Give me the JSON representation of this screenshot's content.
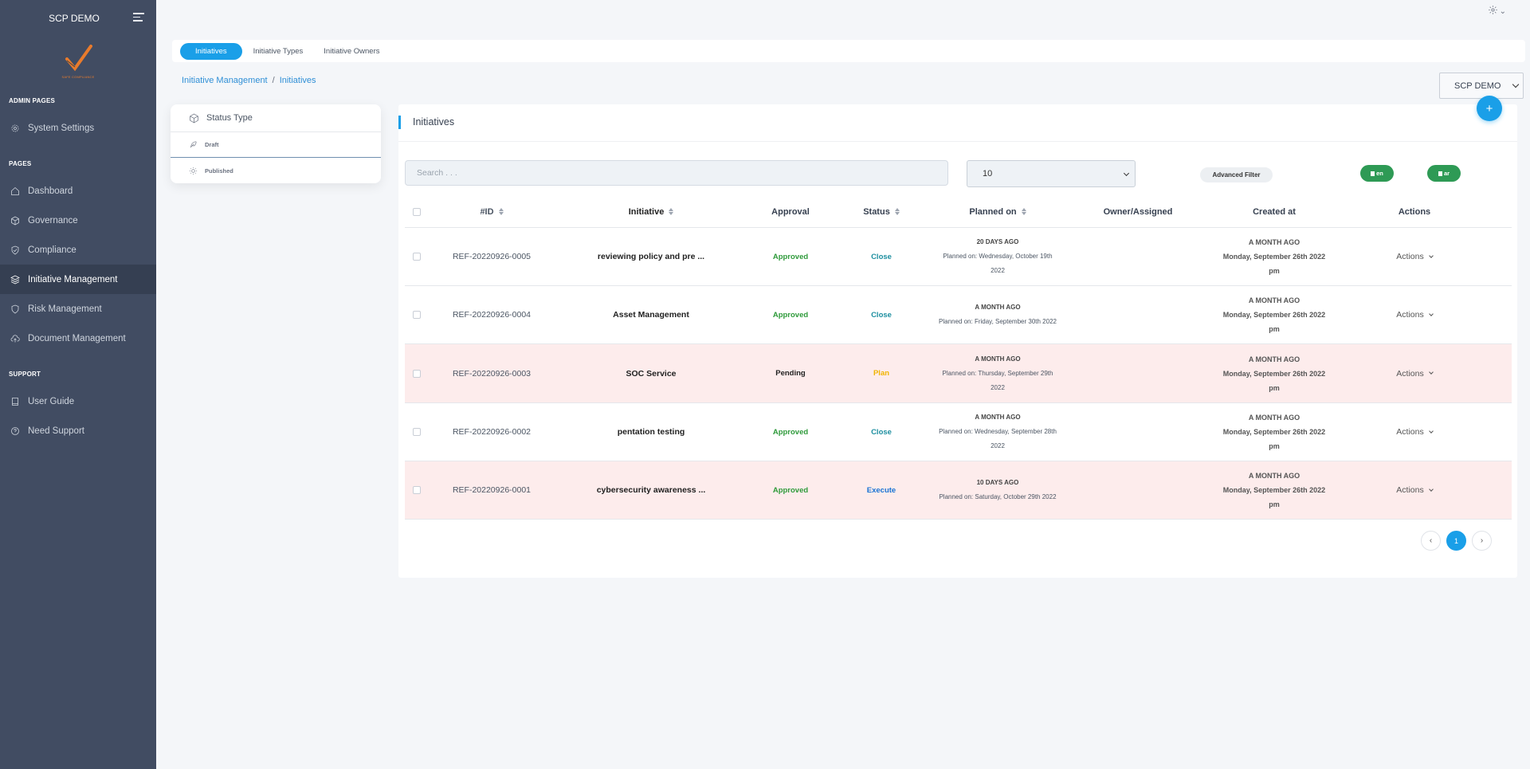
{
  "sidebar": {
    "title": "SCP DEMO",
    "logo_tagline": "SAFE COMPLIANCE",
    "sections": {
      "admin": "ADMIN PAGES",
      "pages": "PAGES",
      "support": "SUPPORT"
    },
    "items": {
      "system_settings": "System Settings",
      "dashboard": "Dashboard",
      "governance": "Governance",
      "compliance": "Compliance",
      "initiative_management": "Initiative Management",
      "risk_management": "Risk Management",
      "document_management": "Document Management",
      "user_guide": "User Guide",
      "need_support": "Need Support"
    },
    "active": "Initiative Management"
  },
  "tabs": [
    "Initiatives",
    "Initiative Types",
    "Initiative Owners"
  ],
  "active_tab": "Initiatives",
  "breadcrumb": [
    "Initiative Management",
    "Initiatives"
  ],
  "org_select": "SCP DEMO",
  "status_panel": {
    "title": "Status Type",
    "options": [
      "Draft",
      "Published"
    ],
    "selected": "Draft"
  },
  "main": {
    "title": "Initiatives",
    "add_label": "+",
    "search_placeholder": "Search . . .",
    "per_page": "10",
    "advanced_filter": "Advanced Filter",
    "export_en": "en",
    "export_ar": "ar"
  },
  "table": {
    "headers": {
      "id": "#ID",
      "initiative": "Initiative",
      "approval": "Approval",
      "status": "Status",
      "planned": "Planned on",
      "owner": "Owner/Assigned",
      "created": "Created at",
      "actions": "Actions"
    },
    "rows": [
      {
        "id": "REF-20220926-0005",
        "initiative": "reviewing policy and pre ...",
        "approval": "Approved",
        "status": "Close",
        "planned_ago": "20 DAYS AGO",
        "planned_line1": "Planned on: Wednesday, October 19th",
        "planned_line2": "2022",
        "created_ago": "A MONTH AGO",
        "created_line1": "Monday, September 26th 2022",
        "created_line2": "pm",
        "actions": "Actions",
        "highlight": false
      },
      {
        "id": "REF-20220926-0004",
        "initiative": "Asset Management",
        "approval": "Approved",
        "status": "Close",
        "planned_ago": "A MONTH AGO",
        "planned_line1": "Planned on: Friday, September 30th 2022",
        "planned_line2": "",
        "created_ago": "A MONTH AGO",
        "created_line1": "Monday, September 26th 2022",
        "created_line2": "pm",
        "actions": "Actions",
        "highlight": false
      },
      {
        "id": "REF-20220926-0003",
        "initiative": "SOC Service",
        "approval": "Pending",
        "status": "Plan",
        "planned_ago": "A MONTH AGO",
        "planned_line1": "Planned on: Thursday, September 29th",
        "planned_line2": "2022",
        "created_ago": "A MONTH AGO",
        "created_line1": "Monday, September 26th 2022",
        "created_line2": "pm",
        "actions": "Actions",
        "highlight": true
      },
      {
        "id": "REF-20220926-0002",
        "initiative": "pentation testing",
        "approval": "Approved",
        "status": "Close",
        "planned_ago": "A MONTH AGO",
        "planned_line1": "Planned on: Wednesday, September 28th",
        "planned_line2": "2022",
        "created_ago": "A MONTH AGO",
        "created_line1": "Monday, September 26th 2022",
        "created_line2": "pm",
        "actions": "Actions",
        "highlight": false
      },
      {
        "id": "REF-20220926-0001",
        "initiative": "cybersecurity awareness ...",
        "approval": "Approved",
        "status": "Execute",
        "planned_ago": "10 DAYS AGO",
        "planned_line1": "Planned on: Saturday, October 29th 2022",
        "planned_line2": "",
        "created_ago": "A MONTH AGO",
        "created_line1": "Monday, September 26th 2022",
        "created_line2": "pm",
        "actions": "Actions",
        "highlight": true
      }
    ]
  },
  "pagination": {
    "prev": "‹",
    "current": "1",
    "next": "›"
  },
  "colors": {
    "accent": "#1a9fe8",
    "approved": "#2e9a3a",
    "pending": "#222222",
    "close": "#1e8fa0",
    "plan": "#f0b400",
    "execute": "#1a73d4",
    "export": "#2e9a55",
    "sidebar": "#414c62"
  }
}
